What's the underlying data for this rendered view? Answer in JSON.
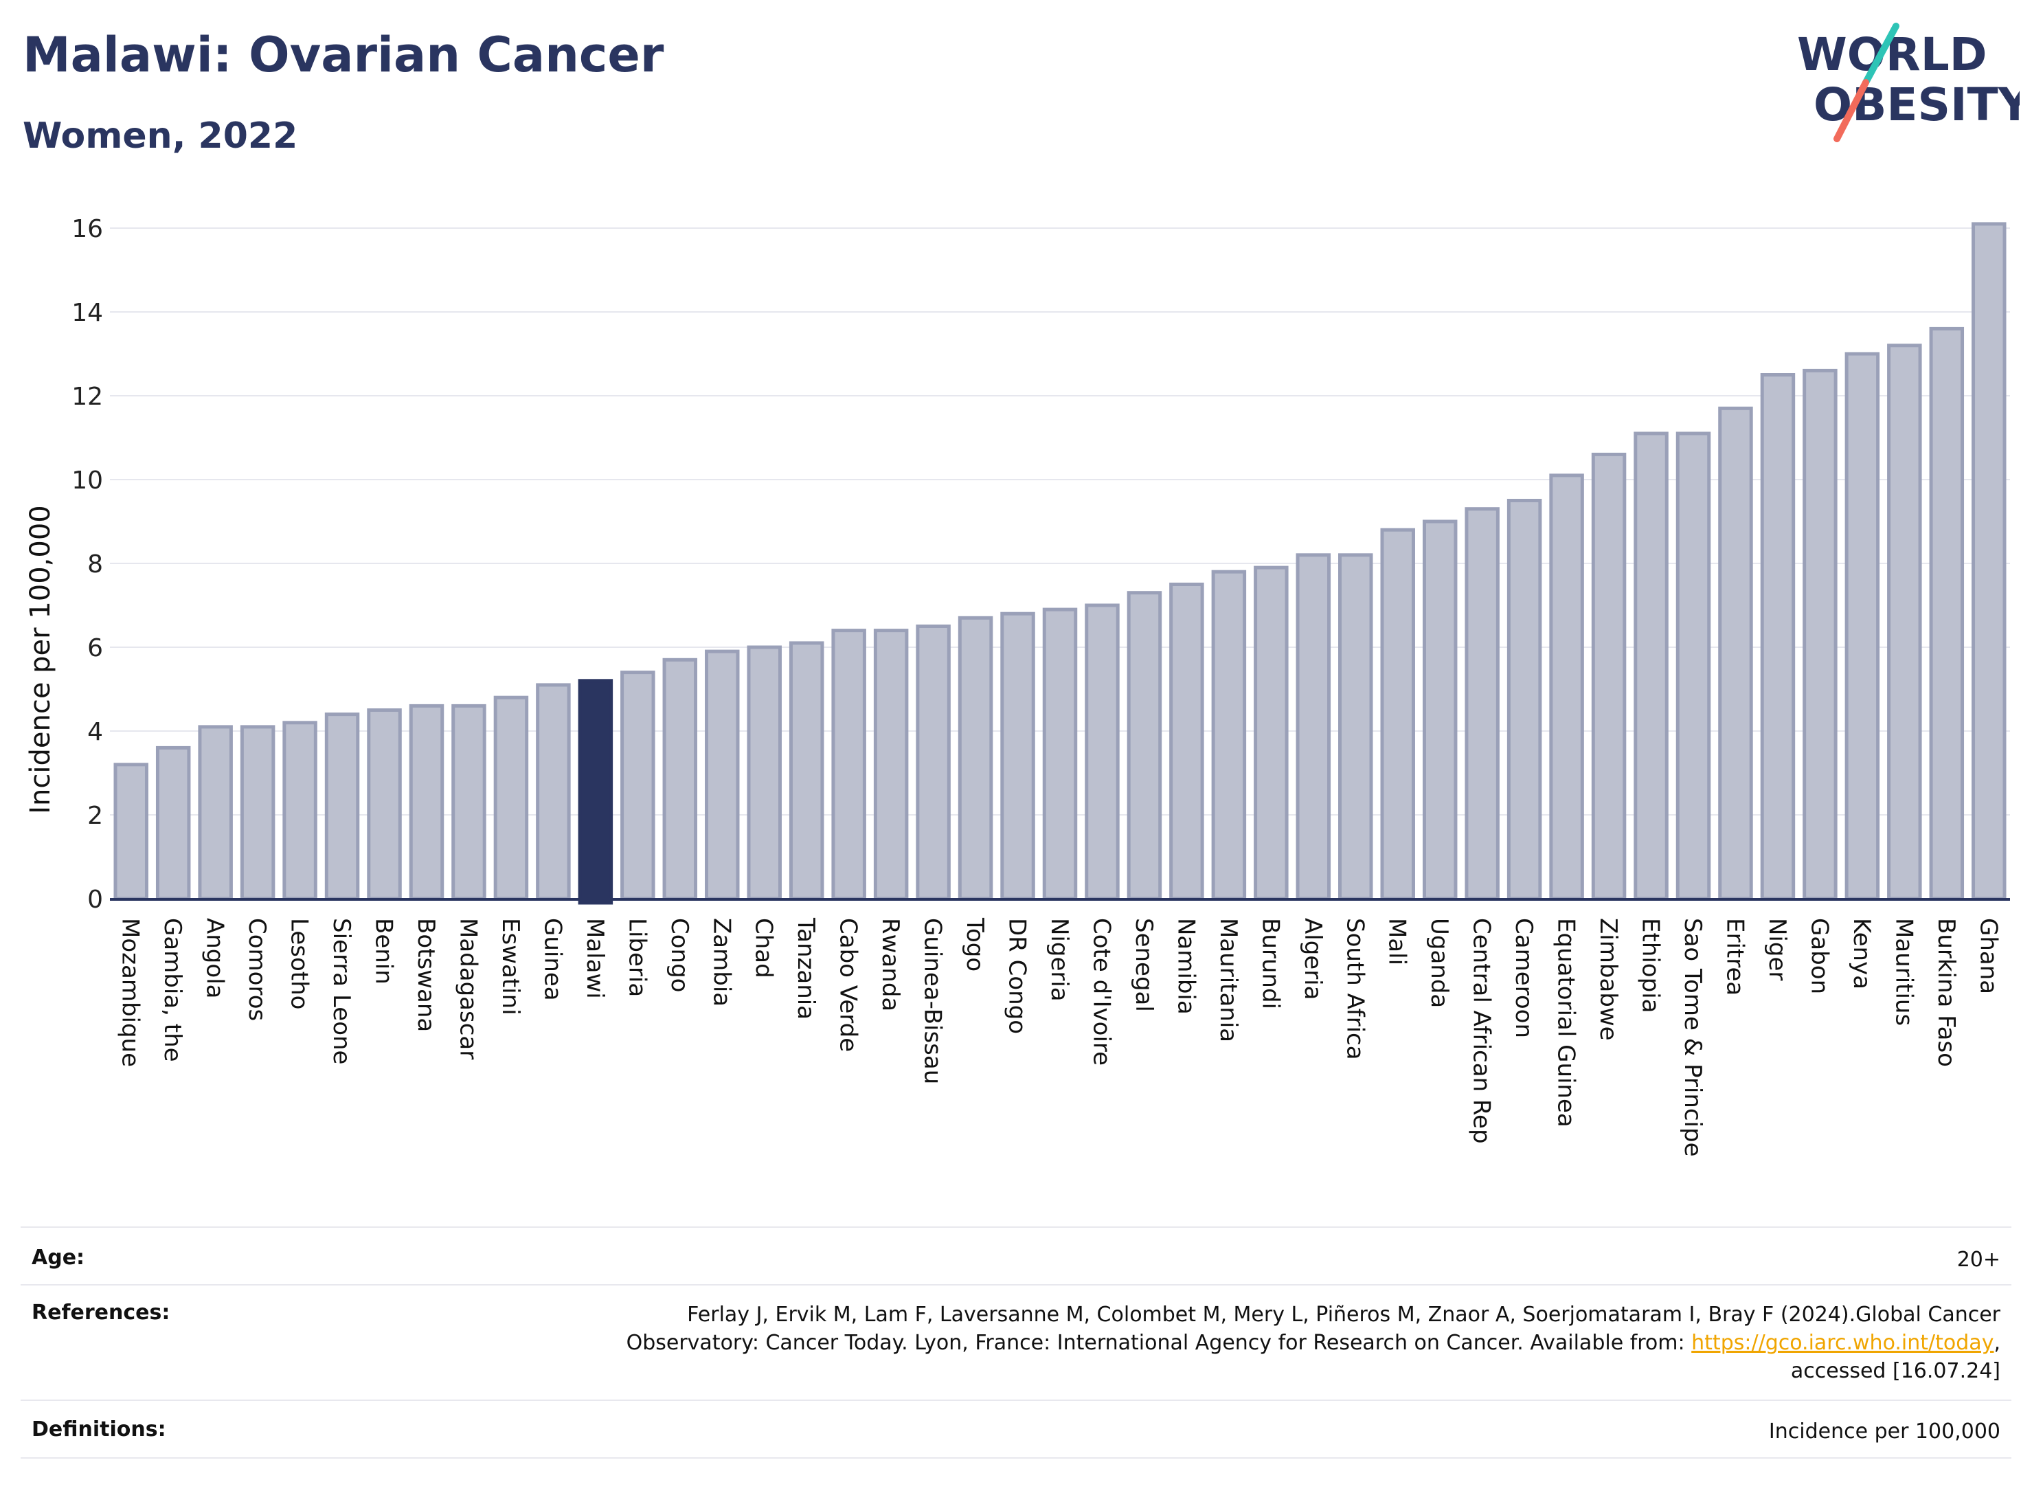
{
  "header": {
    "title": "Malawi: Ovarian Cancer",
    "subtitle": "Women, 2022",
    "logo_line1": "WORLD",
    "logo_line2": "OBESITY"
  },
  "colors": {
    "title": "#2a3560",
    "bar_fill": "#bcc0cf",
    "bar_stroke": "#9aa0b8",
    "highlight": "#2a3560",
    "logo_teal": "#2ec4b6",
    "logo_coral": "#f26b5b",
    "link": "#f0a500"
  },
  "chart_data": {
    "type": "bar",
    "ylabel": "Incidence per 100,000",
    "ylim": [
      0,
      16.5
    ],
    "yticks": [
      0,
      2,
      4,
      6,
      8,
      10,
      12,
      14,
      16
    ],
    "grid": true,
    "highlight": "Malawi",
    "categories": [
      "Mozambique",
      "Gambia, the",
      "Angola",
      "Comoros",
      "Lesotho",
      "Sierra Leone",
      "Benin",
      "Botswana",
      "Madagascar",
      "Eswatini",
      "Guinea",
      "Malawi",
      "Liberia",
      "Congo",
      "Zambia",
      "Chad",
      "Tanzania",
      "Cabo Verde",
      "Rwanda",
      "Guinea-Bissau",
      "Togo",
      "DR Congo",
      "Nigeria",
      "Cote d'Ivoire",
      "Senegal",
      "Namibia",
      "Mauritania",
      "Burundi",
      "Algeria",
      "South Africa",
      "Mali",
      "Uganda",
      "Central African Rep",
      "Cameroon",
      "Equatorial Guinea",
      "Zimbabwe",
      "Ethiopia",
      "Sao Tome & Principe",
      "Eritrea",
      "Niger",
      "Gabon",
      "Kenya",
      "Mauritius",
      "Burkina Faso",
      "Ghana"
    ],
    "values": [
      3.2,
      3.6,
      4.1,
      4.1,
      4.2,
      4.4,
      4.5,
      4.6,
      4.6,
      4.8,
      5.1,
      5.2,
      5.4,
      5.7,
      5.9,
      6.0,
      6.1,
      6.4,
      6.4,
      6.5,
      6.7,
      6.8,
      6.9,
      7.0,
      7.3,
      7.5,
      7.8,
      7.9,
      8.2,
      8.2,
      8.8,
      9.0,
      9.3,
      9.5,
      10.1,
      10.6,
      11.1,
      11.1,
      11.7,
      12.5,
      12.6,
      13.0,
      13.2,
      13.6,
      16.1
    ]
  },
  "meta": {
    "age_label": "Age:",
    "age_value": "20+",
    "references_label": "References:",
    "references_line1": "Ferlay J, Ervik M, Lam F, Laversanne M, Colombet M, Mery L, Piñeros M, Znaor A, Soerjomataram I, Bray F (2024).Global Cancer",
    "references_line2_text": "Observatory: Cancer Today. Lyon, France: International Agency for Research on Cancer. Available from: ",
    "references_link": "https://gco.iarc.who.int/today",
    "references_line2_tail": ",",
    "references_line3": "accessed [16.07.24]",
    "definitions_label": "Definitions:",
    "definitions_value": "Incidence per 100,000"
  }
}
